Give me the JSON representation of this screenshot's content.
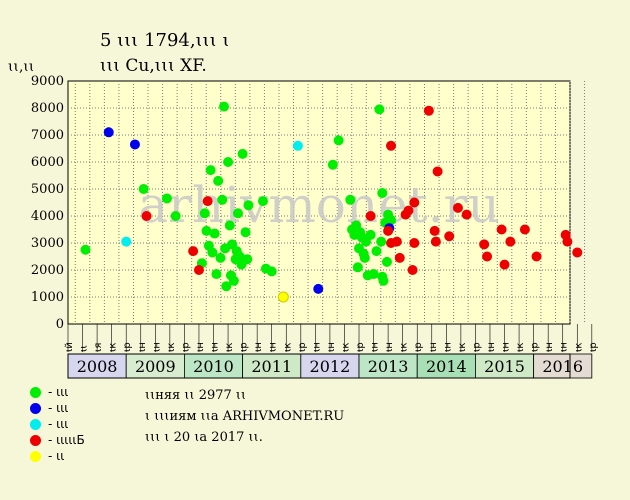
{
  "header": {
    "title": "5 ꙇꙇꙇ 1794,ꙇꙇꙇ ꙇ",
    "subtitle": "ꙇꙇꙇ Cu,ꙇꙇꙇ XF.",
    "ylabel": "ꙇꙇ,ꙇꙇ"
  },
  "watermark": "arhivmonet.ru",
  "legend": [
    {
      "label": "- ꙇꙇꙇ",
      "color": "#00ee00"
    },
    {
      "label": "- ꙇꙇꙇ",
      "color": "#0000ee"
    },
    {
      "label": "- ꙇꙇꙇ",
      "color": "#00eeee"
    },
    {
      "label": "- ꙇꙇꙇꙇꙇБ",
      "color": "#ee0000"
    },
    {
      "label": "- ꙇꙇ",
      "color": "#ffff00"
    }
  ],
  "notes": [
    "ꙇꙇняя ꙇꙇ 2977 ꙇꙇ",
    "ꙇ ꙇꙇꙇиям ꙇꙇа ARHIVMONET.RU",
    "ꙇꙇꙇ ꙇ 20 ꙇа 2017 ꙇꙇ."
  ],
  "chart_data": {
    "type": "scatter",
    "ylim": [
      0,
      9000
    ],
    "yticks": [
      "0",
      "1000",
      "2000",
      "3000",
      "4000",
      "5000",
      "6000",
      "7000",
      "8000",
      "9000"
    ],
    "years": [
      {
        "label": "2008",
        "color": "#d6d6ee"
      },
      {
        "label": "2009",
        "color": "#d8ecd0"
      },
      {
        "label": "2010",
        "color": "#bde6c6"
      },
      {
        "label": "2011",
        "color": "#cfe9c6"
      },
      {
        "label": "2012",
        "color": "#d6d6ee"
      },
      {
        "label": "2013",
        "color": "#bde6c6"
      },
      {
        "label": "2014",
        "color": "#a9dfb4"
      },
      {
        "label": "2015",
        "color": "#cfe9c6"
      },
      {
        "label": "2016",
        "color": "#e4dcd2"
      }
    ],
    "months": [
      "ꙇй",
      "ꙇꙇ",
      "ꙇя",
      "ꙇк",
      "ꙇр",
      "ꙇн",
      "ꙇн",
      "ꙇк",
      "ꙇр",
      "ꙇн",
      "ꙇн",
      "ꙇк",
      "ꙇр",
      "ꙇн",
      "ꙇн",
      "ꙇк",
      "ꙇр",
      "ꙇн",
      "ꙇн",
      "ꙇк",
      "ꙇр",
      "ꙇн",
      "ꙇн",
      "ꙇк",
      "ꙇр",
      "ꙇн",
      "ꙇн",
      "ꙇк",
      "ꙇр",
      "ꙇн",
      "ꙇн",
      "ꙇк",
      "ꙇр",
      "ꙇн",
      "ꙇн",
      "ꙇк",
      "ꙇр"
    ],
    "series": [
      {
        "name": "- ꙇꙇꙇ",
        "color": "#00ee00",
        "points": [
          [
            2008.3,
            2750
          ],
          [
            2009.3,
            5000
          ],
          [
            2009.7,
            4650
          ],
          [
            2009.85,
            4000
          ],
          [
            2010.3,
            2250
          ],
          [
            2010.35,
            4100
          ],
          [
            2010.38,
            3450
          ],
          [
            2010.42,
            2900
          ],
          [
            2010.45,
            5700
          ],
          [
            2010.48,
            2650
          ],
          [
            2010.52,
            3350
          ],
          [
            2010.55,
            1850
          ],
          [
            2010.58,
            5300
          ],
          [
            2010.62,
            2450
          ],
          [
            2010.65,
            4600
          ],
          [
            2010.68,
            8050
          ],
          [
            2010.7,
            2800
          ],
          [
            2010.72,
            1400
          ],
          [
            2010.75,
            6000
          ],
          [
            2010.78,
            3650
          ],
          [
            2010.8,
            1800
          ],
          [
            2010.82,
            2950
          ],
          [
            2010.85,
            1600
          ],
          [
            2010.88,
            2400
          ],
          [
            2010.9,
            2700
          ],
          [
            2010.92,
            4100
          ],
          [
            2010.95,
            2500
          ],
          [
            2010.98,
            2200
          ],
          [
            2011.0,
            6300
          ],
          [
            2011.02,
            2350
          ],
          [
            2011.05,
            3400
          ],
          [
            2011.08,
            2400
          ],
          [
            2011.1,
            4400
          ],
          [
            2011.35,
            4550
          ],
          [
            2011.4,
            2050
          ],
          [
            2011.5,
            1950
          ],
          [
            2012.55,
            5900
          ],
          [
            2012.65,
            6800
          ],
          [
            2012.85,
            4600
          ],
          [
            2012.88,
            3500
          ],
          [
            2012.92,
            3300
          ],
          [
            2012.95,
            3650
          ],
          [
            2012.98,
            2100
          ],
          [
            2013.0,
            2800
          ],
          [
            2013.02,
            3400
          ],
          [
            2013.05,
            3200
          ],
          [
            2013.08,
            2600
          ],
          [
            2013.1,
            2450
          ],
          [
            2013.12,
            3050
          ],
          [
            2013.15,
            1800
          ],
          [
            2013.2,
            3300
          ],
          [
            2013.25,
            1850
          ],
          [
            2013.3,
            2700
          ],
          [
            2013.35,
            7950
          ],
          [
            2013.38,
            3050
          ],
          [
            2013.4,
            4850
          ],
          [
            2013.42,
            1600
          ],
          [
            2013.45,
            3750
          ],
          [
            2013.48,
            2300
          ],
          [
            2013.5,
            4050
          ],
          [
            2013.52,
            3550
          ],
          [
            2013.55,
            3850
          ],
          [
            2013.4,
            1750
          ]
        ]
      },
      {
        "name": "- ꙇꙇꙇ",
        "color": "#0000ee",
        "points": [
          [
            2008.7,
            7100
          ],
          [
            2009.15,
            6650
          ],
          [
            2012.3,
            1300
          ],
          [
            2013.52,
            3550
          ]
        ]
      },
      {
        "name": "- ꙇꙇꙇ",
        "color": "#00eeee",
        "points": [
          [
            2009.0,
            3050
          ],
          [
            2011.95,
            6600
          ]
        ]
      },
      {
        "name": "- ꙇꙇꙇꙇꙇБ",
        "color": "#ee0000",
        "points": [
          [
            2009.35,
            4000
          ],
          [
            2010.15,
            2700
          ],
          [
            2010.25,
            2000
          ],
          [
            2010.4,
            4550
          ],
          [
            2013.2,
            4000
          ],
          [
            2013.5,
            3450
          ],
          [
            2013.55,
            3000
          ],
          [
            2013.55,
            6600
          ],
          [
            2013.65,
            3050
          ],
          [
            2013.7,
            2450
          ],
          [
            2013.8,
            4050
          ],
          [
            2013.85,
            4200
          ],
          [
            2013.92,
            2000
          ],
          [
            2013.95,
            3000
          ],
          [
            2013.95,
            4500
          ],
          [
            2014.2,
            7900
          ],
          [
            2014.3,
            3450
          ],
          [
            2014.32,
            3050
          ],
          [
            2014.35,
            5650
          ],
          [
            2014.55,
            3250
          ],
          [
            2014.7,
            4300
          ],
          [
            2014.85,
            4050
          ],
          [
            2015.15,
            2950
          ],
          [
            2015.2,
            2500
          ],
          [
            2015.45,
            3500
          ],
          [
            2015.5,
            2200
          ],
          [
            2015.6,
            3050
          ],
          [
            2015.85,
            3500
          ],
          [
            2016.05,
            2500
          ],
          [
            2016.55,
            3300
          ],
          [
            2016.58,
            3050
          ],
          [
            2016.75,
            2650
          ]
        ]
      },
      {
        "name": "- ꙇꙇ",
        "color": "#ffff00",
        "points": [
          [
            2011.7,
            1000
          ]
        ]
      }
    ]
  }
}
